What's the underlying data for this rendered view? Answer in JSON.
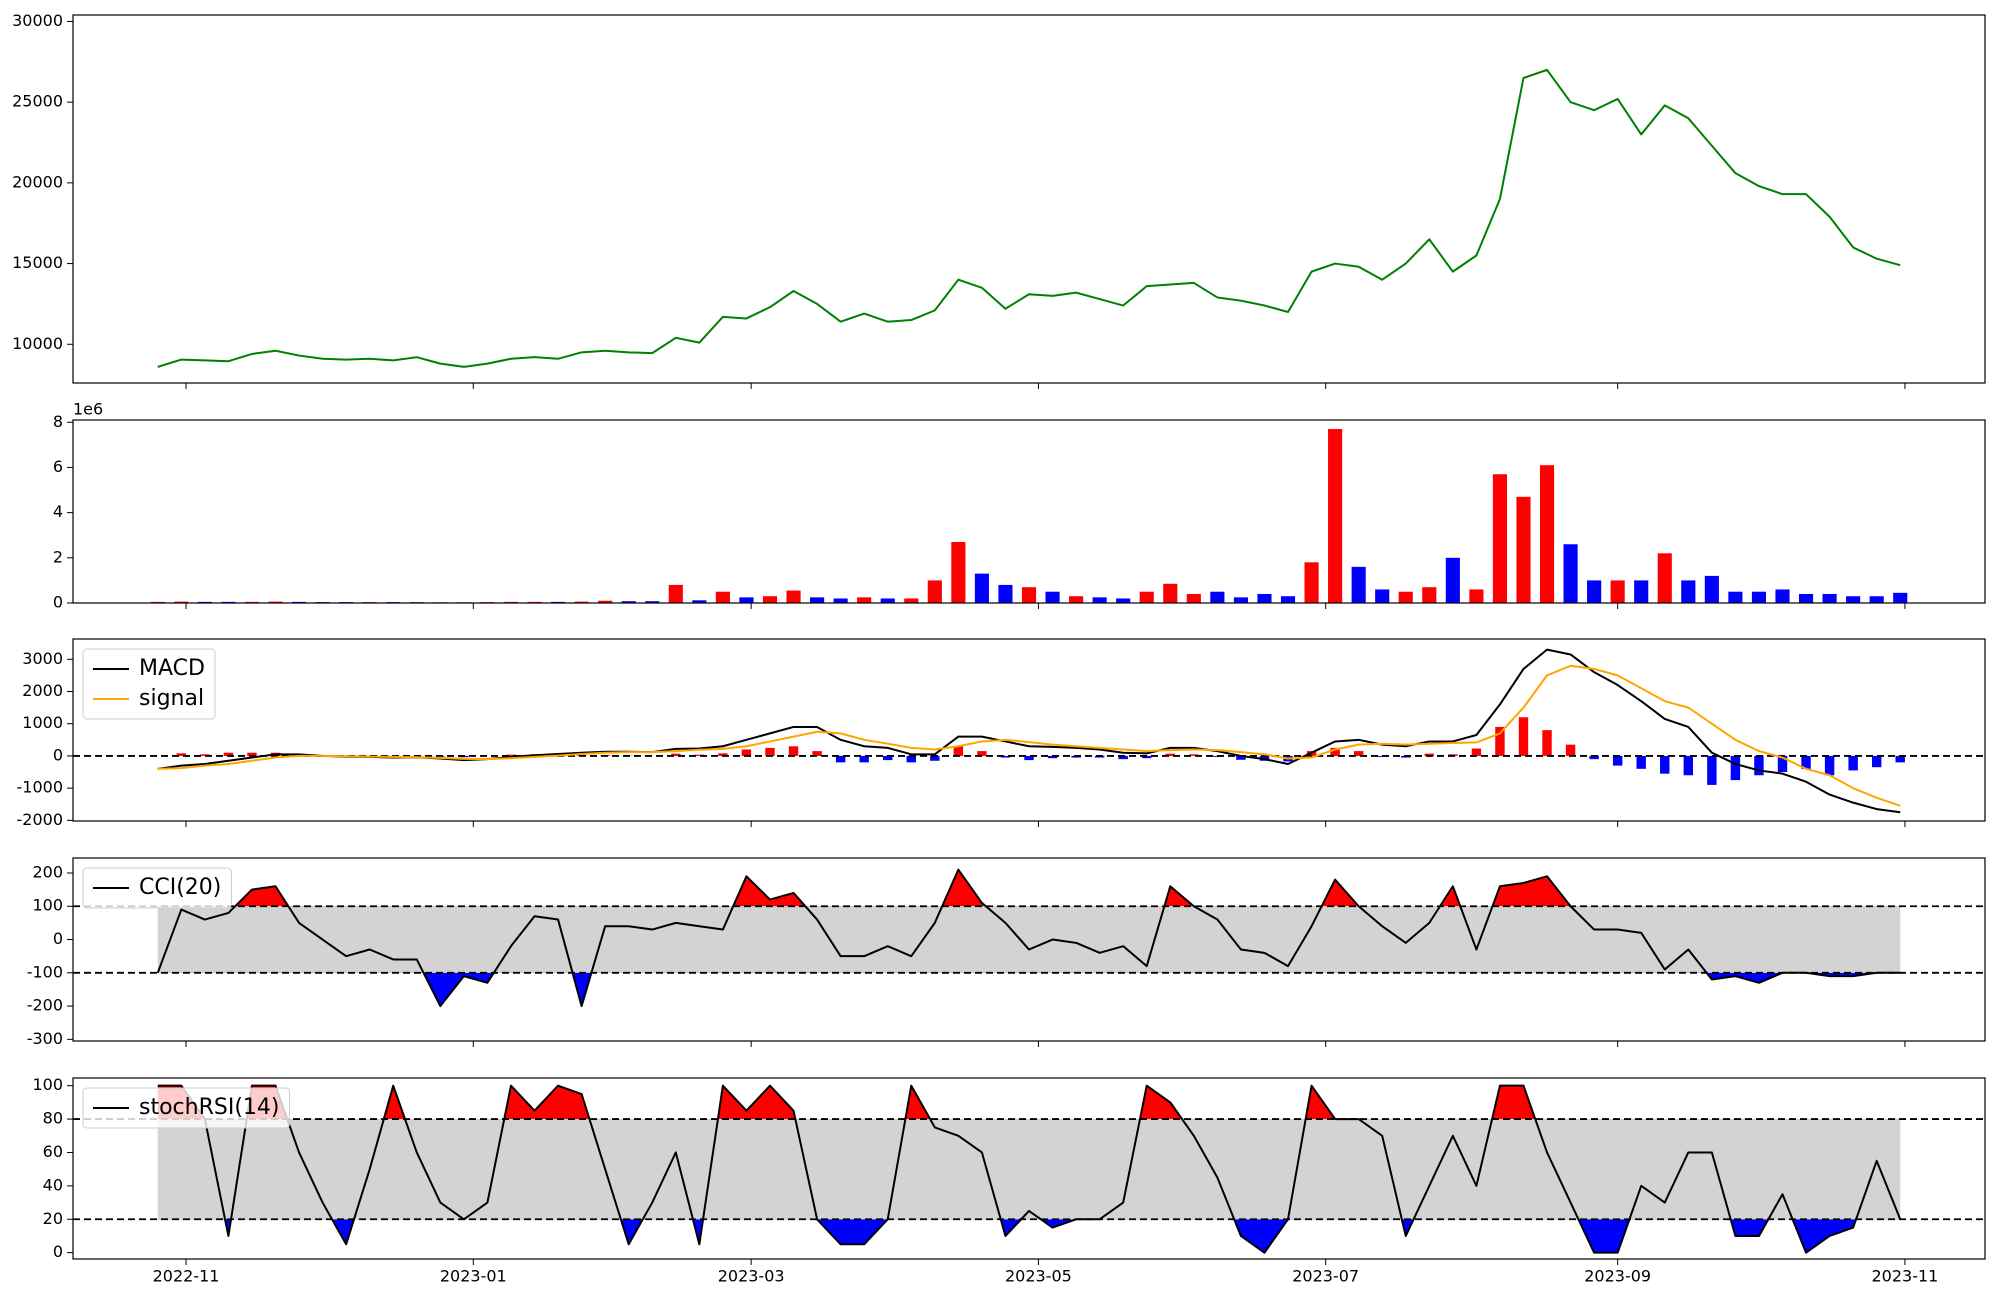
{
  "chart_data": {
    "type": "multi-panel",
    "x": [
      "2022-10-26",
      "2022-10-31",
      "2022-11-05",
      "2022-11-10",
      "2022-11-15",
      "2022-11-20",
      "2022-11-25",
      "2022-11-30",
      "2022-12-05",
      "2022-12-10",
      "2022-12-15",
      "2022-12-20",
      "2022-12-25",
      "2022-12-30",
      "2023-01-04",
      "2023-01-09",
      "2023-01-14",
      "2023-01-19",
      "2023-01-24",
      "2023-01-29",
      "2023-02-03",
      "2023-02-08",
      "2023-02-13",
      "2023-02-18",
      "2023-02-23",
      "2023-02-28",
      "2023-03-05",
      "2023-03-10",
      "2023-03-15",
      "2023-03-20",
      "2023-03-25",
      "2023-03-30",
      "2023-04-04",
      "2023-04-09",
      "2023-04-14",
      "2023-04-19",
      "2023-04-24",
      "2023-04-29",
      "2023-05-04",
      "2023-05-09",
      "2023-05-14",
      "2023-05-19",
      "2023-05-24",
      "2023-05-29",
      "2023-06-03",
      "2023-06-08",
      "2023-06-13",
      "2023-06-18",
      "2023-06-23",
      "2023-06-28",
      "2023-07-03",
      "2023-07-08",
      "2023-07-13",
      "2023-07-18",
      "2023-07-23",
      "2023-07-28",
      "2023-08-02",
      "2023-08-07",
      "2023-08-12",
      "2023-08-17",
      "2023-08-22",
      "2023-08-27",
      "2023-09-01",
      "2023-09-06",
      "2023-09-11",
      "2023-09-16",
      "2023-09-21",
      "2023-09-26",
      "2023-10-01",
      "2023-10-06",
      "2023-10-11",
      "2023-10-16",
      "2023-10-21",
      "2023-10-26",
      "2023-10-31"
    ],
    "xlim": [
      "2022-10-08",
      "2023-11-18"
    ],
    "xticks": [
      {
        "value": "2022-11-01",
        "label": "2022-11"
      },
      {
        "value": "2023-01-01",
        "label": "2023-01"
      },
      {
        "value": "2023-03-01",
        "label": "2023-03"
      },
      {
        "value": "2023-05-01",
        "label": "2023-05"
      },
      {
        "value": "2023-07-01",
        "label": "2023-07"
      },
      {
        "value": "2023-09-01",
        "label": "2023-09"
      },
      {
        "value": "2023-11-01",
        "label": "2023-11"
      }
    ],
    "panels": [
      {
        "type": "line",
        "ylim": [
          7600,
          30400
        ],
        "yticks": [
          10000,
          15000,
          20000,
          25000,
          30000
        ],
        "series": [
          {
            "color": "green",
            "values": [
              8600,
              9050,
              9000,
              8950,
              9400,
              9600,
              9300,
              9100,
              9050,
              9100,
              9000,
              9200,
              8800,
              8600,
              8800,
              9100,
              9200,
              9100,
              9500,
              9600,
              9500,
              9450,
              10400,
              10100,
              11700,
              11600,
              12300,
              13300,
              12500,
              11400,
              11900,
              11400,
              11500,
              12100,
              14000,
              13500,
              12200,
              13100,
              13000,
              13200,
              12800,
              12400,
              13600,
              13700,
              13800,
              12900,
              12700,
              12400,
              12000,
              14500,
              15000,
              14800,
              14000,
              15000,
              16500,
              14500,
              15500,
              19000,
              26500,
              27000,
              25000,
              24500,
              25200,
              23000,
              24800,
              24000,
              22300,
              20600,
              19800,
              19300,
              19300,
              17900,
              16000,
              15300,
              14900
            ]
          }
        ]
      },
      {
        "type": "bar",
        "offset_label": "1e6",
        "ylim": [
          0,
          8.1
        ],
        "yticks": [
          0,
          2,
          4,
          6,
          8
        ],
        "up_color": "red",
        "down_color": "blue",
        "values": [
          0.05,
          0.06,
          0.05,
          0.05,
          0.05,
          0.06,
          0.05,
          0.04,
          0.04,
          0.04,
          0.04,
          0.04,
          0.03,
          0.03,
          0.04,
          0.05,
          0.05,
          0.05,
          0.06,
          0.1,
          0.08,
          0.08,
          0.8,
          0.12,
          0.5,
          0.25,
          0.3,
          0.55,
          0.25,
          0.2,
          0.25,
          0.2,
          0.2,
          1.0,
          2.7,
          1.3,
          0.8,
          0.7,
          0.5,
          0.3,
          0.25,
          0.2,
          0.5,
          0.85,
          0.4,
          0.5,
          0.25,
          0.4,
          0.3,
          1.8,
          7.7,
          1.6,
          0.6,
          0.5,
          0.7,
          2.0,
          0.6,
          5.7,
          4.7,
          6.1,
          2.6,
          1.0,
          1.0,
          1.0,
          2.2,
          1.0,
          1.2,
          0.5,
          0.5,
          0.6,
          0.4,
          0.4,
          0.3,
          0.3,
          0.45
        ]
      },
      {
        "type": "macd",
        "ylim": [
          -2020,
          3630
        ],
        "yticks": [
          -2000,
          -1000,
          0,
          1000,
          2000,
          3000
        ],
        "reference_lines": [
          0
        ],
        "legend": "upper left",
        "series": [
          {
            "name": "MACD",
            "color": "black",
            "values": [
              -400,
              -300,
              -250,
              -150,
              -50,
              50,
              50,
              0,
              -20,
              -30,
              -50,
              -40,
              -80,
              -130,
              -100,
              -30,
              20,
              60,
              100,
              130,
              130,
              120,
              220,
              230,
              300,
              500,
              700,
              900,
              900,
              500,
              300,
              250,
              50,
              50,
              600,
              600,
              450,
              300,
              280,
              250,
              200,
              100,
              80,
              250,
              250,
              150,
              0,
              -100,
              -250,
              100,
              450,
              500,
              350,
              300,
              450,
              450,
              650,
              1600,
              2700,
              3300,
              3150,
              2600,
              2200,
              1700,
              1150,
              900,
              100,
              -250,
              -450,
              -550,
              -800,
              -1200,
              -1450,
              -1650,
              -1750
            ]
          },
          {
            "name": "signal",
            "color": "orange",
            "values": [
              -400,
              -380,
              -300,
              -250,
              -150,
              -50,
              0,
              0,
              -10,
              -20,
              -30,
              -40,
              -60,
              -90,
              -100,
              -70,
              -30,
              10,
              60,
              100,
              120,
              120,
              150,
              190,
              220,
              300,
              450,
              600,
              750,
              700,
              500,
              380,
              250,
              200,
              300,
              450,
              500,
              430,
              350,
              300,
              250,
              200,
              150,
              180,
              200,
              180,
              120,
              50,
              -80,
              -50,
              200,
              350,
              380,
              350,
              380,
              400,
              420,
              700,
              1500,
              2500,
              2800,
              2700,
              2500,
              2100,
              1700,
              1500,
              1000,
              500,
              150,
              -50,
              -400,
              -600,
              -1000,
              -1300,
              -1550
            ]
          }
        ],
        "histogram": {
          "up_color": "red",
          "down_color": "blue",
          "values": [
            0,
            80,
            50,
            100,
            100,
            100,
            50,
            0,
            -10,
            -10,
            -20,
            0,
            -20,
            -40,
            0,
            40,
            50,
            50,
            40,
            30,
            10,
            0,
            70,
            40,
            80,
            200,
            250,
            300,
            150,
            -200,
            -200,
            -130,
            -200,
            -150,
            300,
            150,
            -50,
            -130,
            -70,
            -50,
            -50,
            -100,
            -70,
            70,
            50,
            -30,
            -120,
            -150,
            -170,
            150,
            250,
            150,
            -30,
            -50,
            70,
            50,
            230,
            900,
            1200,
            800,
            350,
            -100,
            -300,
            -400,
            -550,
            -600,
            -900,
            -750,
            -600,
            -500,
            -400,
            -600,
            -450,
            -350,
            -200
          ]
        }
      },
      {
        "type": "oscillator",
        "ylim": [
          -305,
          245
        ],
        "yticks": [
          -300,
          -200,
          -100,
          0,
          100,
          200
        ],
        "bands": [
          -100,
          100
        ],
        "band_color": "lightgray",
        "above_color": "red",
        "below_color": "blue",
        "legend": "upper left",
        "series": [
          {
            "name": "CCI(20)",
            "color": "black",
            "values": [
              -100,
              90,
              60,
              80,
              150,
              160,
              50,
              0,
              -50,
              -30,
              -60,
              -60,
              -200,
              -110,
              -130,
              -20,
              70,
              60,
              -200,
              40,
              40,
              30,
              50,
              40,
              30,
              190,
              120,
              140,
              60,
              -50,
              -50,
              -20,
              -50,
              50,
              210,
              110,
              50,
              -30,
              0,
              -10,
              -40,
              -20,
              -80,
              160,
              100,
              60,
              -30,
              -40,
              -80,
              40,
              180,
              100,
              40,
              -10,
              50,
              160,
              -30,
              160,
              170,
              190,
              100,
              30,
              30,
              20,
              -90,
              -30,
              -120,
              -110,
              -130,
              -100,
              -100,
              -110,
              -110,
              -100,
              -100
            ]
          }
        ]
      },
      {
        "type": "oscillator",
        "ylim": [
          -3.8,
          104.6
        ],
        "yticks": [
          0,
          20,
          40,
          60,
          80,
          100
        ],
        "bands": [
          20,
          80
        ],
        "band_color": "lightgray",
        "above_color": "red",
        "below_color": "blue",
        "legend": "upper left",
        "series": [
          {
            "name": "stochRSI(14)",
            "color": "black",
            "values": [
              100,
              100,
              80,
              10,
              100,
              100,
              60,
              30,
              5,
              50,
              100,
              60,
              30,
              20,
              30,
              100,
              85,
              100,
              95,
              50,
              5,
              30,
              60,
              5,
              100,
              85,
              100,
              85,
              20,
              5,
              5,
              20,
              100,
              75,
              70,
              60,
              10,
              25,
              15,
              20,
              20,
              30,
              100,
              90,
              70,
              45,
              10,
              0,
              20,
              100,
              80,
              80,
              70,
              10,
              40,
              70,
              40,
              100,
              100,
              60,
              30,
              0,
              0,
              40,
              30,
              60,
              60,
              10,
              10,
              35,
              0,
              10,
              15,
              55,
              20
            ]
          }
        ]
      }
    ]
  }
}
